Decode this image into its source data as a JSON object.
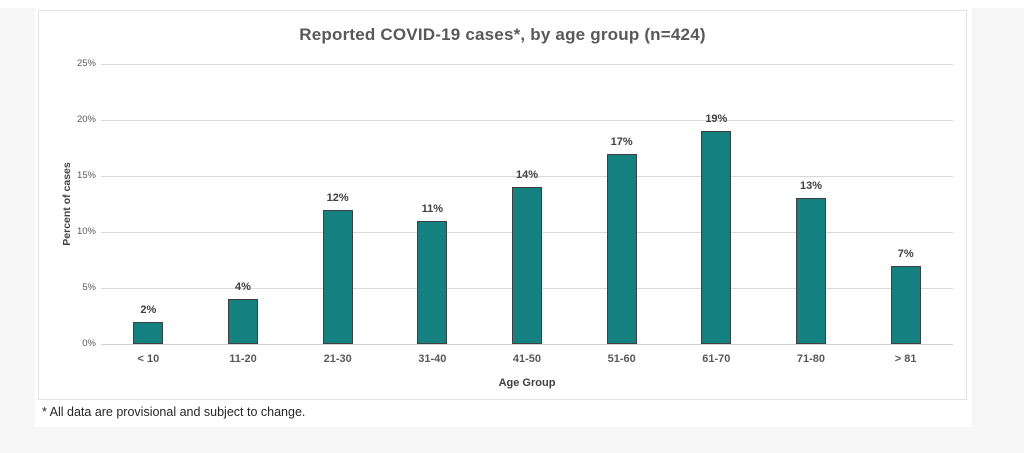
{
  "page": {
    "background": "#f6f6f6",
    "card_background": "#ffffff",
    "footnote": "* All data are provisional and subject to change."
  },
  "chart_data": {
    "type": "bar",
    "title": "Reported COVID-19 cases*, by age group (n=424)",
    "categories": [
      "< 10",
      "11-20",
      "21-30",
      "31-40",
      "41-50",
      "51-60",
      "61-70",
      "71-80",
      "> 81"
    ],
    "values": [
      2,
      4,
      12,
      11,
      14,
      17,
      19,
      13,
      7
    ],
    "data_labels": [
      "2%",
      "4%",
      "12%",
      "11%",
      "14%",
      "17%",
      "19%",
      "13%",
      "7%"
    ],
    "xlabel": "Age Group",
    "ylabel": "Percent of cases",
    "ylim": [
      0,
      25
    ],
    "ytick_step": 5,
    "ytick_labels": [
      "0%",
      "5%",
      "10%",
      "15%",
      "20%",
      "25%"
    ],
    "grid": true,
    "legend": "none",
    "colors": {
      "bar_fill": "#158080",
      "bar_border": "#3f3f3f",
      "gridline": "#d9d9d9",
      "title": "#595959",
      "tick_label": "#595959",
      "data_label": "#404040",
      "axis_title": "#404040"
    }
  }
}
